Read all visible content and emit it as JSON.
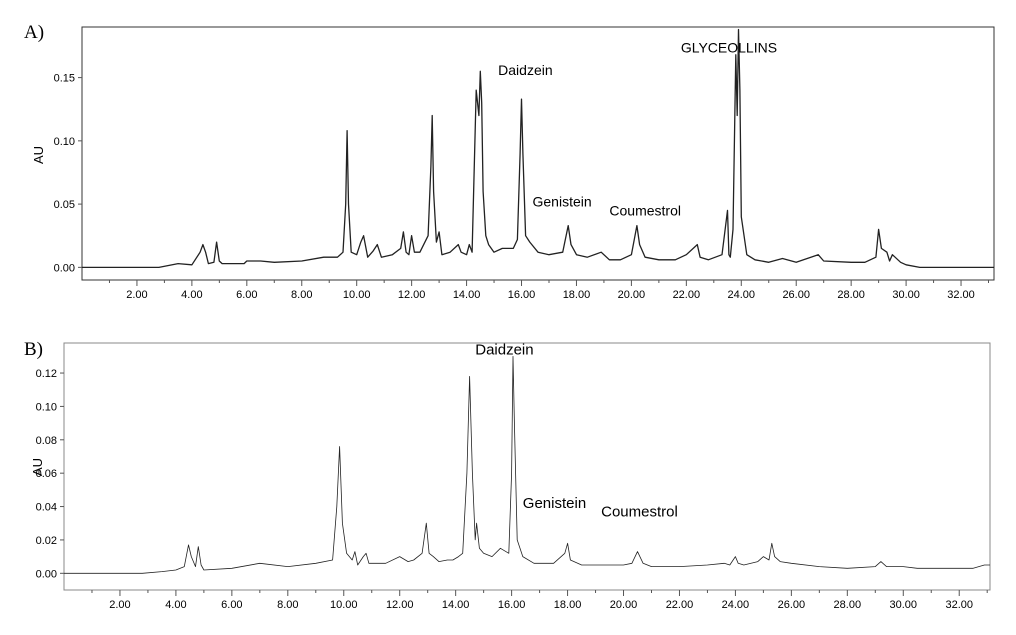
{
  "chart_data": [
    {
      "type": "line",
      "panel_label": "A)",
      "title": "",
      "xlabel": "",
      "ylabel": "AU",
      "xlim": [
        0,
        33.2
      ],
      "ylim": [
        -0.01,
        0.19
      ],
      "x_ticks": [
        "2.00",
        "4.00",
        "6.00",
        "8.00",
        "10.00",
        "12.00",
        "14.00",
        "16.00",
        "18.00",
        "20.00",
        "22.00",
        "24.00",
        "26.00",
        "28.00",
        "30.00",
        "32.00"
      ],
      "y_ticks": [
        "0.00",
        "0.05",
        "0.10",
        "0.15"
      ],
      "grid": false,
      "series": [
        {
          "x": [
            0,
            2.8,
            3.5,
            4.0,
            4.3,
            4.4,
            4.5,
            4.6,
            4.8,
            4.9,
            5.0,
            5.1,
            5.9,
            6.0,
            6.5,
            7.0,
            8.0,
            8.8,
            9.3,
            9.5,
            9.6,
            9.65,
            9.7,
            9.8,
            10.0,
            10.15,
            10.25,
            10.4,
            10.6,
            10.75,
            10.9,
            11.3,
            11.6,
            11.7,
            11.8,
            11.9,
            12.0,
            12.1,
            12.3,
            12.6,
            12.7,
            12.75,
            12.8,
            12.9,
            13.0,
            13.1,
            13.4,
            13.7,
            13.8,
            14.0,
            14.1,
            14.2,
            14.35,
            14.45,
            14.5,
            14.55,
            14.6,
            14.7,
            14.8,
            15.0,
            15.3,
            15.7,
            15.85,
            15.95,
            16.0,
            16.05,
            16.15,
            16.3,
            16.6,
            17.0,
            17.5,
            17.7,
            17.8,
            18.0,
            18.4,
            18.9,
            19.2,
            19.6,
            20.0,
            20.2,
            20.3,
            20.5,
            21.0,
            21.6,
            22.0,
            22.4,
            22.5,
            22.8,
            23.3,
            23.5,
            23.55,
            23.6,
            23.7,
            23.8,
            23.85,
            23.9,
            23.95,
            24.0,
            24.2,
            24.5,
            25.0,
            25.5,
            26.0,
            26.8,
            27.0,
            28.0,
            28.5,
            28.9,
            29.0,
            29.1,
            29.3,
            29.4,
            29.5,
            29.8,
            30.0,
            30.5,
            33.2
          ],
          "y": [
            0,
            0,
            0.003,
            0.002,
            0.012,
            0.018,
            0.012,
            0.003,
            0.004,
            0.02,
            0.005,
            0.003,
            0.003,
            0.005,
            0.005,
            0.004,
            0.005,
            0.008,
            0.008,
            0.012,
            0.05,
            0.108,
            0.05,
            0.012,
            0.01,
            0.02,
            0.025,
            0.008,
            0.013,
            0.018,
            0.008,
            0.01,
            0.015,
            0.028,
            0.012,
            0.01,
            0.025,
            0.012,
            0.012,
            0.025,
            0.08,
            0.12,
            0.06,
            0.02,
            0.028,
            0.01,
            0.012,
            0.018,
            0.012,
            0.01,
            0.018,
            0.012,
            0.14,
            0.12,
            0.155,
            0.13,
            0.06,
            0.025,
            0.018,
            0.012,
            0.015,
            0.015,
            0.022,
            0.09,
            0.133,
            0.09,
            0.025,
            0.02,
            0.012,
            0.01,
            0.012,
            0.033,
            0.018,
            0.01,
            0.008,
            0.012,
            0.006,
            0.006,
            0.01,
            0.033,
            0.018,
            0.008,
            0.006,
            0.006,
            0.01,
            0.018,
            0.008,
            0.006,
            0.01,
            0.045,
            0.01,
            0.008,
            0.03,
            0.168,
            0.12,
            0.188,
            0.14,
            0.04,
            0.01,
            0.006,
            0.004,
            0.007,
            0.004,
            0.01,
            0.005,
            0.004,
            0.004,
            0.008,
            0.03,
            0.015,
            0.012,
            0.005,
            0.01,
            0.004,
            0.002,
            0,
            0
          ]
        }
      ],
      "annotations": [
        {
          "text": "Daidzein",
          "x": 15.15,
          "y": 0.152
        },
        {
          "text": "Genistein",
          "x": 16.4,
          "y": 0.048
        },
        {
          "text": "Coumestrol",
          "x": 19.2,
          "y": 0.041
        },
        {
          "text": "GLYCEOLLINS",
          "x": 21.8,
          "y": 0.17
        }
      ]
    },
    {
      "type": "line",
      "panel_label": "B)",
      "title": "",
      "xlabel": "",
      "ylabel": "AU",
      "xlim": [
        0,
        33.1
      ],
      "ylim": [
        -0.01,
        0.138
      ],
      "x_ticks": [
        "2.00",
        "4.00",
        "6.00",
        "8.00",
        "10.00",
        "12.00",
        "14.00",
        "16.00",
        "18.00",
        "20.00",
        "22.00",
        "24.00",
        "26.00",
        "28.00",
        "30.00",
        "32.00"
      ],
      "y_ticks": [
        "0.00",
        "0.02",
        "0.04",
        "0.06",
        "0.08",
        "0.10",
        "0.12"
      ],
      "grid": false,
      "series": [
        {
          "x": [
            0,
            2.8,
            3.5,
            4.0,
            4.3,
            4.45,
            4.55,
            4.7,
            4.8,
            4.9,
            5.0,
            6.0,
            7.0,
            8.0,
            9.0,
            9.6,
            9.75,
            9.85,
            9.95,
            10.1,
            10.3,
            10.4,
            10.5,
            10.7,
            10.8,
            10.9,
            11.5,
            12.0,
            12.3,
            12.5,
            12.8,
            12.95,
            13.05,
            13.2,
            13.4,
            13.7,
            13.9,
            14.1,
            14.25,
            14.4,
            14.5,
            14.6,
            14.7,
            14.75,
            14.85,
            15.0,
            15.3,
            15.6,
            15.9,
            16.0,
            16.05,
            16.1,
            16.2,
            16.4,
            16.8,
            17.5,
            17.9,
            18.0,
            18.1,
            18.5,
            19.0,
            20.0,
            20.3,
            20.5,
            20.7,
            21.0,
            22.0,
            23.0,
            23.6,
            23.8,
            24.0,
            24.1,
            24.3,
            24.8,
            25.0,
            25.2,
            25.3,
            25.4,
            25.6,
            26.0,
            27.0,
            28.0,
            29.0,
            29.2,
            29.4,
            30.0,
            30.5,
            31.0,
            32.0,
            32.5,
            32.9,
            33.1
          ],
          "y": [
            0,
            0,
            0.001,
            0.002,
            0.004,
            0.017,
            0.01,
            0.004,
            0.016,
            0.005,
            0.002,
            0.003,
            0.006,
            0.004,
            0.006,
            0.008,
            0.04,
            0.076,
            0.03,
            0.012,
            0.008,
            0.013,
            0.005,
            0.01,
            0.012,
            0.006,
            0.006,
            0.01,
            0.007,
            0.008,
            0.012,
            0.03,
            0.012,
            0.01,
            0.007,
            0.008,
            0.008,
            0.01,
            0.012,
            0.06,
            0.118,
            0.06,
            0.02,
            0.03,
            0.015,
            0.012,
            0.01,
            0.015,
            0.012,
            0.06,
            0.13,
            0.09,
            0.02,
            0.01,
            0.006,
            0.006,
            0.012,
            0.018,
            0.008,
            0.005,
            0.005,
            0.005,
            0.006,
            0.013,
            0.006,
            0.004,
            0.004,
            0.005,
            0.006,
            0.005,
            0.01,
            0.006,
            0.005,
            0.007,
            0.01,
            0.008,
            0.018,
            0.01,
            0.007,
            0.006,
            0.004,
            0.003,
            0.004,
            0.007,
            0.004,
            0.004,
            0.003,
            0.003,
            0.003,
            0.003,
            0.005,
            0.005
          ]
        }
      ],
      "annotations": [
        {
          "text": "Daidzein",
          "x": 14.7,
          "y": 0.131
        },
        {
          "text": "Genistein",
          "x": 16.4,
          "y": 0.039
        },
        {
          "text": "Coumestrol",
          "x": 19.2,
          "y": 0.034
        }
      ]
    }
  ]
}
